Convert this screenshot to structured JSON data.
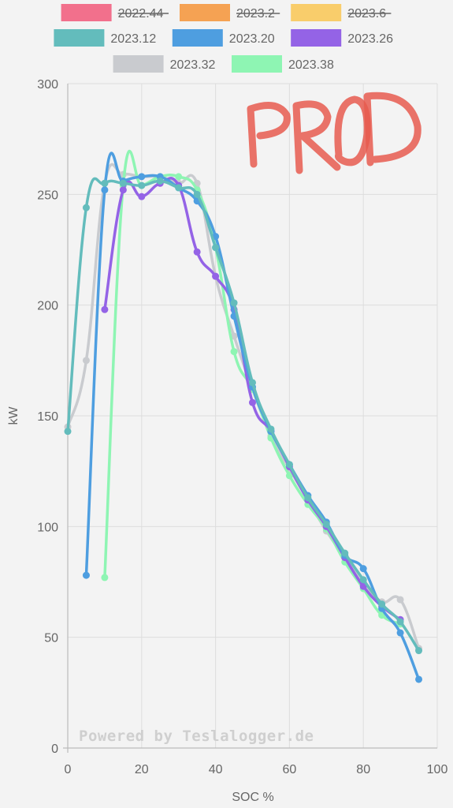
{
  "chart_data": {
    "type": "line",
    "xlabel": "SOC %",
    "ylabel": "kW",
    "xlim": [
      0,
      100
    ],
    "ylim": [
      0,
      300
    ],
    "x_ticks": [
      0,
      20,
      40,
      60,
      80,
      100
    ],
    "y_ticks": [
      0,
      50,
      100,
      150,
      200,
      250,
      300
    ],
    "grid": true,
    "legend_position": "top",
    "watermark": "Powered by Teslalogger.de",
    "annotation": "PROD",
    "series": [
      {
        "name": "2022.44",
        "color": "#f2708c",
        "hidden": true,
        "points": []
      },
      {
        "name": "2023.2",
        "color": "#f5a253",
        "hidden": true,
        "points": []
      },
      {
        "name": "2023.6",
        "color": "#f9cd6b",
        "hidden": true,
        "points": []
      },
      {
        "name": "2023.12",
        "color": "#63bcbc",
        "hidden": false,
        "points": [
          [
            0,
            143
          ],
          [
            5,
            244
          ],
          [
            10,
            255
          ],
          [
            15,
            255
          ],
          [
            20,
            254
          ],
          [
            25,
            256
          ],
          [
            30,
            253
          ],
          [
            35,
            250
          ],
          [
            40,
            226
          ],
          [
            45,
            201
          ],
          [
            50,
            165
          ],
          [
            55,
            144
          ],
          [
            60,
            128
          ],
          [
            65,
            113
          ],
          [
            70,
            101
          ],
          [
            75,
            88
          ],
          [
            80,
            76
          ],
          [
            85,
            65
          ],
          [
            90,
            57
          ],
          [
            95,
            44
          ]
        ]
      },
      {
        "name": "2023.20",
        "color": "#4e9ee0",
        "hidden": false,
        "points": [
          [
            5,
            78
          ],
          [
            10,
            252
          ],
          [
            15,
            256
          ],
          [
            20,
            258
          ],
          [
            25,
            258
          ],
          [
            30,
            253
          ],
          [
            35,
            247
          ],
          [
            40,
            231
          ],
          [
            45,
            195
          ],
          [
            50,
            163
          ],
          [
            55,
            143
          ],
          [
            60,
            128
          ],
          [
            65,
            114
          ],
          [
            70,
            102
          ],
          [
            75,
            87
          ],
          [
            80,
            81
          ],
          [
            85,
            63
          ],
          [
            90,
            52
          ],
          [
            95,
            31
          ]
        ]
      },
      {
        "name": "2023.26",
        "color": "#9463e6",
        "hidden": false,
        "points": [
          [
            10,
            198
          ],
          [
            15,
            252
          ],
          [
            20,
            249
          ],
          [
            25,
            255
          ],
          [
            30,
            254
          ],
          [
            35,
            224
          ],
          [
            40,
            213
          ],
          [
            45,
            198
          ],
          [
            50,
            156
          ],
          [
            55,
            143
          ],
          [
            60,
            127
          ],
          [
            65,
            112
          ],
          [
            70,
            100
          ],
          [
            75,
            86
          ],
          [
            80,
            73
          ],
          [
            85,
            64
          ],
          [
            90,
            58
          ]
        ]
      },
      {
        "name": "2023.32",
        "color": "#c9cbcf",
        "hidden": false,
        "points": [
          [
            0,
            145
          ],
          [
            5,
            175
          ],
          [
            10,
            255
          ],
          [
            15,
            259
          ],
          [
            20,
            258
          ],
          [
            25,
            258
          ],
          [
            30,
            255
          ],
          [
            35,
            255
          ],
          [
            40,
            213
          ],
          [
            45,
            186
          ],
          [
            50,
            162
          ],
          [
            55,
            141
          ],
          [
            60,
            126
          ],
          [
            65,
            112
          ],
          [
            70,
            98
          ],
          [
            75,
            86
          ],
          [
            80,
            75
          ],
          [
            85,
            66
          ],
          [
            90,
            67
          ],
          [
            95,
            45
          ]
        ]
      },
      {
        "name": "2023.38",
        "color": "#8ef5b3",
        "hidden": false,
        "points": [
          [
            10,
            77
          ],
          [
            15,
            254
          ],
          [
            20,
            254
          ],
          [
            25,
            258
          ],
          [
            30,
            258
          ],
          [
            35,
            252
          ],
          [
            40,
            226
          ],
          [
            45,
            179
          ],
          [
            50,
            162
          ],
          [
            55,
            140
          ],
          [
            60,
            123
          ],
          [
            65,
            110
          ],
          [
            70,
            99
          ],
          [
            75,
            84
          ],
          [
            80,
            72
          ],
          [
            85,
            60
          ],
          [
            90,
            56
          ]
        ]
      }
    ]
  }
}
